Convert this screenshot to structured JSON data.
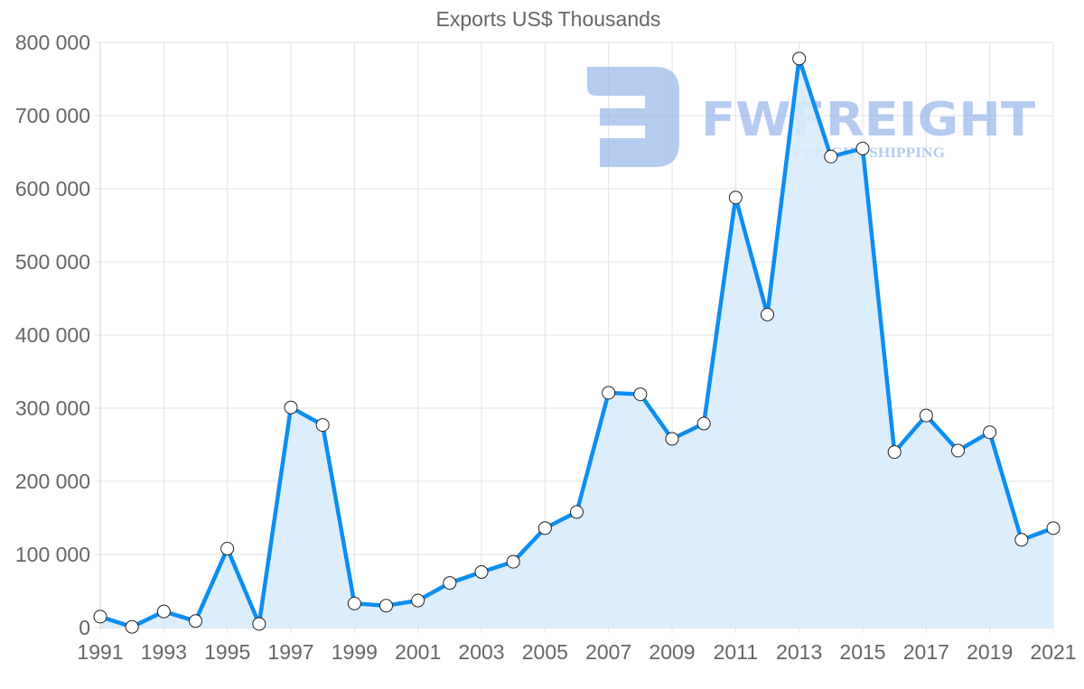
{
  "chart_data": {
    "type": "line",
    "title": "Exports US$ Thousands",
    "xlabel": "",
    "ylabel": "",
    "ylim": [
      0,
      800000
    ],
    "yticks": [
      "0",
      "100 000",
      "200 000",
      "300 000",
      "400 000",
      "500 000",
      "600 000",
      "700 000",
      "800 000"
    ],
    "xticks": [
      "1991",
      "1993",
      "1995",
      "1997",
      "1999",
      "2001",
      "2003",
      "2005",
      "2007",
      "2009",
      "2011",
      "2013",
      "2015",
      "2017",
      "2019",
      "2021"
    ],
    "grid": true,
    "legend": "none",
    "filled": true,
    "categories": [
      "1991",
      "1992",
      "1993",
      "1994",
      "1995",
      "1996",
      "1997",
      "1998",
      "1999",
      "2000",
      "2001",
      "2002",
      "2003",
      "2004",
      "2005",
      "2006",
      "2007",
      "2008",
      "2009",
      "2010",
      "2011",
      "2012",
      "2013",
      "2014",
      "2015",
      "2016",
      "2017",
      "2018",
      "2019",
      "2020",
      "2021"
    ],
    "series": [
      {
        "name": "Exports US$ Thousands",
        "values": [
          15000,
          1000,
          22000,
          9000,
          108000,
          5000,
          301000,
          277000,
          33000,
          30000,
          37000,
          61000,
          76000,
          90000,
          136000,
          158000,
          321000,
          319000,
          258000,
          279000,
          588000,
          428000,
          778000,
          644000,
          655000,
          240000,
          290000,
          242000,
          267000,
          120000,
          136000
        ]
      }
    ]
  },
  "colors": {
    "line": "#0d8ef0",
    "fill": "#d8ebfc",
    "grid": "#e3e3e3",
    "text": "#666666",
    "watermark": "#8eb0ea"
  },
  "watermark": {
    "brand": "FWFREIGHT",
    "tagline": "FREIGHT SHIPPING"
  }
}
